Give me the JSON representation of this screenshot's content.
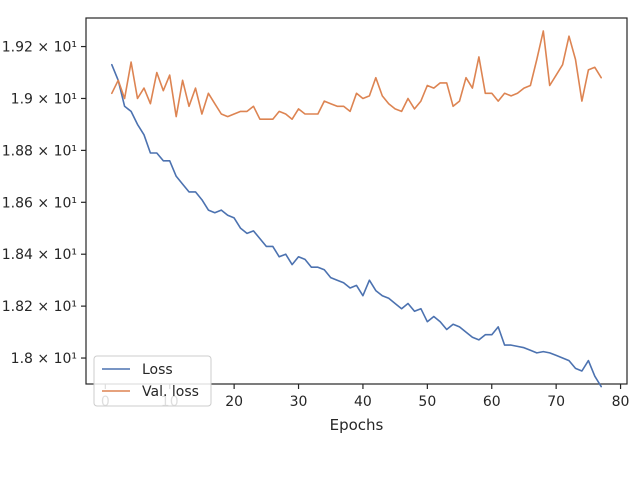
{
  "chart_data": {
    "type": "line",
    "xlabel": "Epochs",
    "ylabel": "",
    "xlim": [
      -3,
      81
    ],
    "ylim": [
      17.9,
      19.31
    ],
    "grid": false,
    "legend_placement": "lower-left",
    "x_ticks": [
      0,
      10,
      20,
      30,
      40,
      50,
      60,
      70,
      80
    ],
    "x_tick_labels": [
      "0",
      "10",
      "20",
      "30",
      "40",
      "50",
      "60",
      "70",
      "80"
    ],
    "y_ticks": [
      18.0,
      18.2,
      18.4,
      18.6,
      18.8,
      19.0,
      19.2
    ],
    "y_tick_labels": [
      "1.8 × 10¹",
      "1.82 × 10¹",
      "1.84 × 10¹",
      "1.86 × 10¹",
      "1.88 × 10¹",
      "1.9 × 10¹",
      "1.92 × 10¹"
    ],
    "x": [
      1,
      2,
      3,
      4,
      5,
      6,
      7,
      8,
      9,
      10,
      11,
      12,
      13,
      14,
      15,
      16,
      17,
      18,
      19,
      20,
      21,
      22,
      23,
      24,
      25,
      26,
      27,
      28,
      29,
      30,
      31,
      32,
      33,
      34,
      35,
      36,
      37,
      38,
      39,
      40,
      41,
      42,
      43,
      44,
      45,
      46,
      47,
      48,
      49,
      50,
      51,
      52,
      53,
      54,
      55,
      56,
      57,
      58,
      59,
      60,
      61,
      62,
      63,
      64,
      65,
      66,
      67,
      68,
      69,
      70,
      71,
      72,
      73,
      74,
      75,
      76,
      77
    ],
    "series": [
      {
        "name": "Loss",
        "color": "#4c72b0",
        "values": [
          19.13,
          19.07,
          18.97,
          18.95,
          18.9,
          18.86,
          18.79,
          18.79,
          18.76,
          18.76,
          18.7,
          18.67,
          18.64,
          18.64,
          18.61,
          18.57,
          18.56,
          18.57,
          18.55,
          18.54,
          18.5,
          18.48,
          18.49,
          18.46,
          18.43,
          18.43,
          18.39,
          18.4,
          18.36,
          18.39,
          18.38,
          18.35,
          18.35,
          18.34,
          18.31,
          18.3,
          18.29,
          18.27,
          18.28,
          18.24,
          18.3,
          18.26,
          18.24,
          18.23,
          18.21,
          18.19,
          18.21,
          18.18,
          18.19,
          18.14,
          18.16,
          18.14,
          18.11,
          18.13,
          18.12,
          18.1,
          18.08,
          18.07,
          18.09,
          18.09,
          18.12,
          18.05,
          18.05,
          18.045,
          18.04,
          18.03,
          18.02,
          18.025,
          18.02,
          18.01,
          18.0,
          17.99,
          17.96,
          17.95,
          17.99,
          17.93,
          17.89
        ]
      },
      {
        "name": "Val. loss",
        "color": "#dd8452",
        "values": [
          19.02,
          19.07,
          19.0,
          19.14,
          19.0,
          19.04,
          18.98,
          19.1,
          19.03,
          19.09,
          18.93,
          19.07,
          18.97,
          19.04,
          18.94,
          19.02,
          18.98,
          18.94,
          18.93,
          18.94,
          18.95,
          18.95,
          18.97,
          18.92,
          18.92,
          18.92,
          18.95,
          18.94,
          18.92,
          18.96,
          18.94,
          18.94,
          18.94,
          18.99,
          18.98,
          18.97,
          18.97,
          18.95,
          19.02,
          19.0,
          19.01,
          19.08,
          19.01,
          18.98,
          18.96,
          18.95,
          19.0,
          18.96,
          18.99,
          19.05,
          19.04,
          19.06,
          19.06,
          18.97,
          18.99,
          19.08,
          19.04,
          19.16,
          19.02,
          19.02,
          18.99,
          19.02,
          19.01,
          19.02,
          19.04,
          19.05,
          19.15,
          19.26,
          19.05,
          19.09,
          19.13,
          19.24,
          19.15,
          18.99,
          19.11,
          19.12,
          19.08
        ]
      }
    ]
  }
}
